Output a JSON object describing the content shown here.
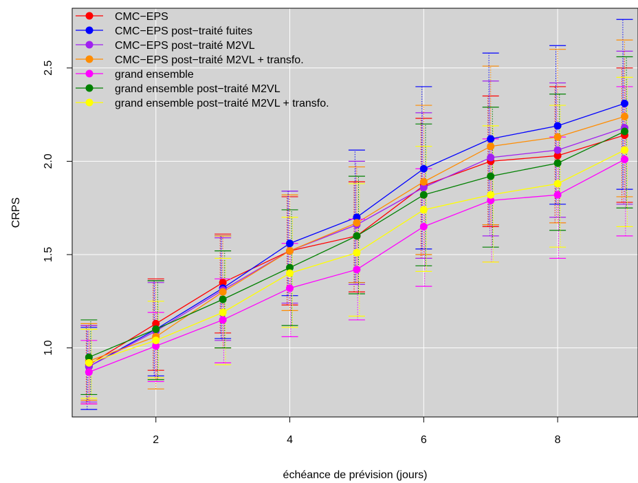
{
  "chart_data": {
    "type": "line",
    "title": "",
    "xlabel": "échéance de prévision (jours)",
    "ylabel": "CRPS",
    "xlim": [
      0.75,
      9.2
    ],
    "ylim": [
      0.63,
      2.82
    ],
    "x_ticks": [
      2,
      4,
      6,
      8
    ],
    "y_ticks": [
      1.0,
      1.5,
      2.0,
      2.5
    ],
    "x_tick_labels": [
      "2",
      "4",
      "6",
      "8"
    ],
    "y_tick_labels": [
      "1.0",
      "1.5",
      "2.0",
      "2.5"
    ],
    "grid": true,
    "background": "#d3d3d3",
    "legend_position": "top-left",
    "x": [
      1,
      2,
      3,
      4,
      5,
      6,
      7,
      8,
      9
    ],
    "series": [
      {
        "name": "CMC−EPS",
        "color": "#ff0000",
        "values": [
          0.91,
          1.13,
          1.35,
          1.52,
          1.6,
          1.87,
          2.0,
          2.03,
          2.14
        ],
        "lower": [
          0.7,
          0.88,
          1.08,
          1.23,
          1.3,
          1.48,
          1.65,
          1.67,
          1.78
        ],
        "upper": [
          1.12,
          1.37,
          1.61,
          1.81,
          1.89,
          2.23,
          2.35,
          2.4,
          2.5
        ]
      },
      {
        "name": "CMC−EPS post−traité fuites",
        "color": "#0000ff",
        "values": [
          0.9,
          1.1,
          1.32,
          1.56,
          1.7,
          1.96,
          2.12,
          2.19,
          2.31
        ],
        "lower": [
          0.67,
          0.85,
          1.05,
          1.28,
          1.35,
          1.53,
          1.66,
          1.77,
          1.85
        ],
        "upper": [
          1.11,
          1.36,
          1.6,
          1.84,
          2.06,
          2.4,
          2.58,
          2.62,
          2.76
        ]
      },
      {
        "name": "CMC−EPS post−traité M2VL",
        "color": "#a020f0",
        "values": [
          0.9,
          1.09,
          1.31,
          1.52,
          1.66,
          1.86,
          2.02,
          2.06,
          2.18
        ],
        "lower": [
          0.71,
          0.84,
          1.04,
          1.24,
          1.34,
          1.48,
          1.6,
          1.7,
          1.77
        ],
        "upper": [
          1.12,
          1.35,
          1.59,
          1.84,
          2.0,
          2.26,
          2.43,
          2.42,
          2.59
        ]
      },
      {
        "name": "CMC−EPS post−traité M2VL + transfo.",
        "color": "#ff8c00",
        "values": [
          0.93,
          1.06,
          1.3,
          1.52,
          1.67,
          1.89,
          2.08,
          2.13,
          2.24
        ],
        "lower": [
          0.72,
          0.78,
          1.0,
          1.2,
          1.35,
          1.5,
          1.66,
          1.67,
          1.81
        ],
        "upper": [
          1.13,
          1.36,
          1.6,
          1.82,
          1.97,
          2.3,
          2.51,
          2.6,
          2.65
        ]
      },
      {
        "name": "grand ensemble",
        "color": "#ff00ff",
        "values": [
          0.87,
          1.01,
          1.15,
          1.32,
          1.42,
          1.65,
          1.79,
          1.82,
          2.01
        ],
        "lower": [
          0.7,
          0.82,
          0.92,
          1.06,
          1.15,
          1.33,
          1.46,
          1.48,
          1.6
        ],
        "upper": [
          1.04,
          1.19,
          1.37,
          1.56,
          1.69,
          1.96,
          2.12,
          2.13,
          2.4
        ]
      },
      {
        "name": "grand ensemble post−traité M2VL",
        "color": "#008000",
        "values": [
          0.95,
          1.1,
          1.26,
          1.43,
          1.6,
          1.82,
          1.92,
          1.99,
          2.16
        ],
        "lower": [
          0.75,
          0.83,
          1.0,
          1.12,
          1.29,
          1.44,
          1.54,
          1.63,
          1.75
        ],
        "upper": [
          1.15,
          1.36,
          1.52,
          1.74,
          1.92,
          2.2,
          2.29,
          2.36,
          2.56
        ]
      },
      {
        "name": "grand ensemble post−traité M2VL + transfo.",
        "color": "#ffff00",
        "values": [
          0.92,
          1.04,
          1.19,
          1.4,
          1.51,
          1.74,
          1.82,
          1.88,
          2.06
        ],
        "lower": [
          0.73,
          0.84,
          0.91,
          1.11,
          1.17,
          1.41,
          1.46,
          1.54,
          1.65
        ],
        "upper": [
          1.1,
          1.25,
          1.48,
          1.7,
          1.88,
          2.08,
          2.19,
          2.3,
          2.45
        ]
      }
    ]
  }
}
